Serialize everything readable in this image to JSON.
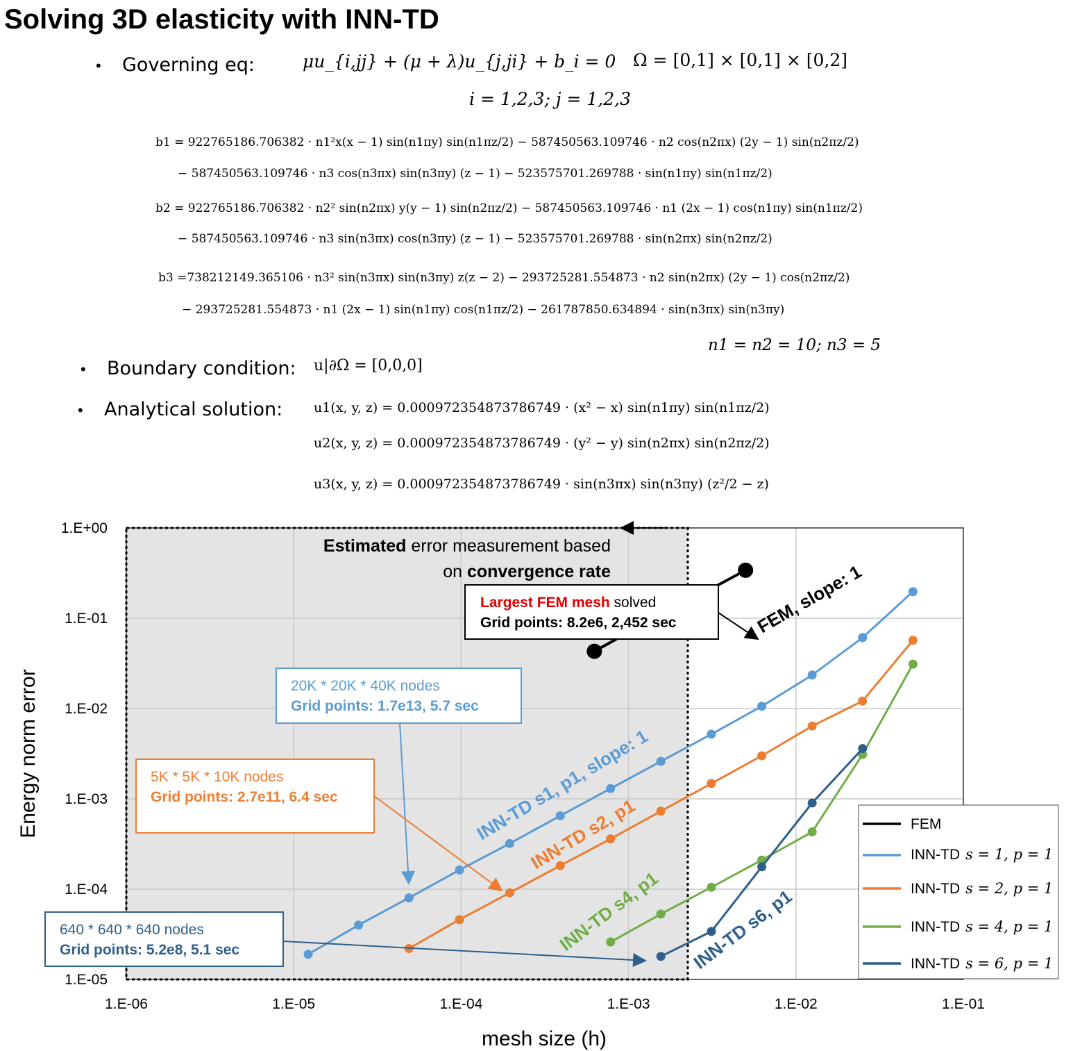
{
  "title": "Solving 3D elasticity with INN-TD",
  "governing": {
    "label": "Governing eq:",
    "equation": "μu_{i,jj} + (μ + λ)u_{j,ji} + b_i = 0",
    "domain": "Ω = [0,1] × [0,1] × [0,2]",
    "indices": "i = 1,2,3; j = 1,2,3"
  },
  "body_forces": {
    "b1_line1": "b1 = 922765186.706382 · n1²x(x − 1) sin(n1πy) sin(n1πz/2) − 587450563.109746 · n2 cos(n2πx) (2y − 1) sin(n2πz/2)",
    "b1_line2": "− 587450563.109746 · n3 cos(n3πx) sin(n3πy) (z − 1) − 523575701.269788 · sin(n1πy) sin(n1πz/2)",
    "b2_line1": "b2 = 922765186.706382 · n2² sin(n2πx) y(y − 1) sin(n2πz/2) − 587450563.109746 · n1 (2x − 1) cos(n1πy) sin(n1πz/2)",
    "b2_line2": "− 587450563.109746 · n3 sin(n3πx) cos(n3πy) (z − 1) − 523575701.269788 · sin(n2πx) sin(n2πz/2)",
    "b3_line1": "b3 =738212149.365106 · n3² sin(n3πx) sin(n3πy) z(z − 2) − 293725281.554873 · n2 sin(n2πx) (2y − 1) cos(n2πz/2)",
    "b3_line2": "− 293725281.554873 · n1 (2x − 1) sin(n1πy) cos(n1πz/2) − 261787850.634894 · sin(n3πx) sin(n3πy)",
    "parameters": "n1 = n2 = 10; n3 = 5"
  },
  "boundary": {
    "label": "Boundary condition:",
    "equation": "u|∂Ω = [0,0,0]"
  },
  "analytical": {
    "label": "Analytical solution:",
    "u1": "u1(x, y, z) = 0.000972354873786749 · (x² − x) sin(n1πy) sin(n1πz/2)",
    "u2": "u2(x, y, z) = 0.000972354873786749 · (y² − y) sin(n2πx) sin(n2πz/2)",
    "u3": "u3(x, y, z) = 0.000972354873786749 · sin(n3πx) sin(n3πy) (z²/2 − z)"
  },
  "chart_data": {
    "type": "line",
    "xlabel": "mesh size (h)",
    "ylabel": "Energy norm error",
    "xscale": "log",
    "yscale": "log",
    "xlim": [
      1e-06,
      0.1
    ],
    "ylim": [
      1e-05,
      1
    ],
    "xticks": [
      "1.E-06",
      "1.E-05",
      "1.E-04",
      "1.E-03",
      "1.E-02",
      "1.E-01"
    ],
    "yticks": [
      "1.E+00",
      "1.E-01",
      "1.E-02",
      "1.E-03",
      "1.E-04",
      "1.E-05"
    ],
    "grid": true,
    "legend_position": "bottom-right",
    "series": [
      {
        "name": "FEM",
        "color": "#000000",
        "x": [
          0.000625,
          0.00125,
          0.0025,
          0.005
        ],
        "y": [
          0.043,
          0.088,
          0.17,
          0.34
        ]
      },
      {
        "name": "INN-TD s = 1, p = 1",
        "color": "#5B9BD5",
        "x": [
          1.22e-05,
          2.44e-05,
          4.88e-05,
          9.77e-05,
          0.000195,
          0.000391,
          0.000781,
          0.00156,
          0.003125,
          0.00625,
          0.0125,
          0.025,
          0.05
        ],
        "y": [
          1.9e-05,
          4e-05,
          8e-05,
          0.000163,
          0.00032,
          0.00065,
          0.0013,
          0.0026,
          0.0052,
          0.0106,
          0.0235,
          0.061,
          0.197
        ]
      },
      {
        "name": "INN-TD s = 2, p = 1",
        "color": "#ED7D31",
        "x": [
          4.88e-05,
          9.77e-05,
          0.000195,
          0.000391,
          0.000781,
          0.00156,
          0.003125,
          0.00625,
          0.0125,
          0.025,
          0.05
        ],
        "y": [
          2.2e-05,
          4.6e-05,
          9.1e-05,
          0.000182,
          0.00036,
          0.00073,
          0.00148,
          0.003,
          0.0064,
          0.0121,
          0.057
        ]
      },
      {
        "name": "INN-TD s = 4, p = 1",
        "color": "#70AD47",
        "x": [
          0.000781,
          0.00156,
          0.003125,
          0.00625,
          0.0125,
          0.025,
          0.05
        ],
        "y": [
          2.6e-05,
          5.3e-05,
          0.000105,
          0.00021,
          0.00043,
          0.0031,
          0.031
        ]
      },
      {
        "name": "INN-TD s = 6, p = 1",
        "color": "#2E5F8A",
        "x": [
          0.00156,
          0.003125,
          0.00625,
          0.0125,
          0.025
        ],
        "y": [
          1.8e-05,
          3.4e-05,
          0.000177,
          0.0009,
          0.0036
        ]
      }
    ],
    "shaded_region_label": {
      "bold": "Estimated",
      "rest1": " error measurement based",
      "rest2a": "on ",
      "bold2": "convergence rate"
    },
    "line_labels": {
      "fem": "FEM, slope: 1",
      "s1": "INN-TD s1, p1, slope: 1",
      "s2": "INN-TD s2, p1",
      "s4": "INN-TD s4, p1",
      "s6": "INN-TD s6, p1"
    },
    "callouts": {
      "fem": {
        "red": "Largest FEM mesh",
        "rest": " solved",
        "line2": "Grid points: 8.2e6, 2,452 sec"
      },
      "s1": {
        "line1": "20K * 20K * 40K nodes",
        "line2": "Grid points: 1.7e13, 5.7 sec"
      },
      "s2": {
        "line1": "5K * 5K * 10K nodes",
        "line2": "Grid points: 2.7e11, 6.4 sec"
      },
      "s6": {
        "line1": "640 * 640 * 640 nodes",
        "line2": "Grid points: 5.2e8, 5.1 sec"
      }
    },
    "legend_labels": {
      "fem": "FEM",
      "s1_prefix": "INN-TD",
      "s1_math": "s = 1, p = 1",
      "s2_prefix": "INN-TD",
      "s2_math": "s = 2, p = 1",
      "s4_prefix": "INN-TD",
      "s4_math": "s = 4, p = 1",
      "s6_prefix": "INN-TD",
      "s6_math": "s = 6, p = 1"
    }
  }
}
